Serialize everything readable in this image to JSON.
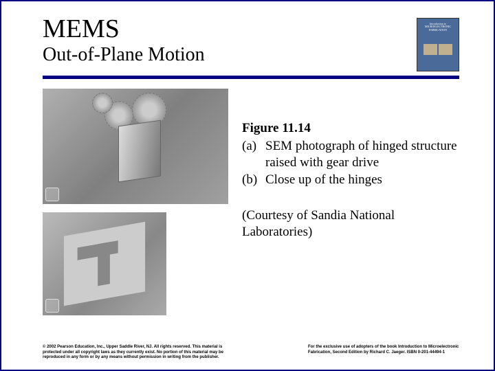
{
  "header": {
    "title": "MEMS",
    "subtitle": "Out-of-Plane Motion"
  },
  "book_cover": {
    "line1": "Introduction to",
    "line2": "MICROELECTRONIC",
    "line3": "FABRICATION",
    "bg_color": "#4a6a9a"
  },
  "figure": {
    "label": "Figure 11.14",
    "items": [
      {
        "letter": "(a)",
        "text": "SEM photograph of hinged structure raised with gear drive"
      },
      {
        "letter": "(b)",
        "text": "Close up of the hinges"
      }
    ],
    "courtesy": "(Courtesy of Sandia National Laboratories)"
  },
  "footer": {
    "left": "© 2002 Pearson Education, Inc., Upper Saddle River, NJ. All rights reserved. This material is protected under all copyright laws as they currently exist. No portion of this material may be reproduced in any form or by any means without permission in writing from the publisher.",
    "right": "For the exclusive use of adopters of the book Introduction to Microelectronic Fabrication, Second Edition by Richard C. Jaeger. ISBN 0-201-44494-1"
  },
  "colors": {
    "rule": "#000080",
    "border": "#000080",
    "text": "#000000",
    "background": "#ffffff"
  }
}
